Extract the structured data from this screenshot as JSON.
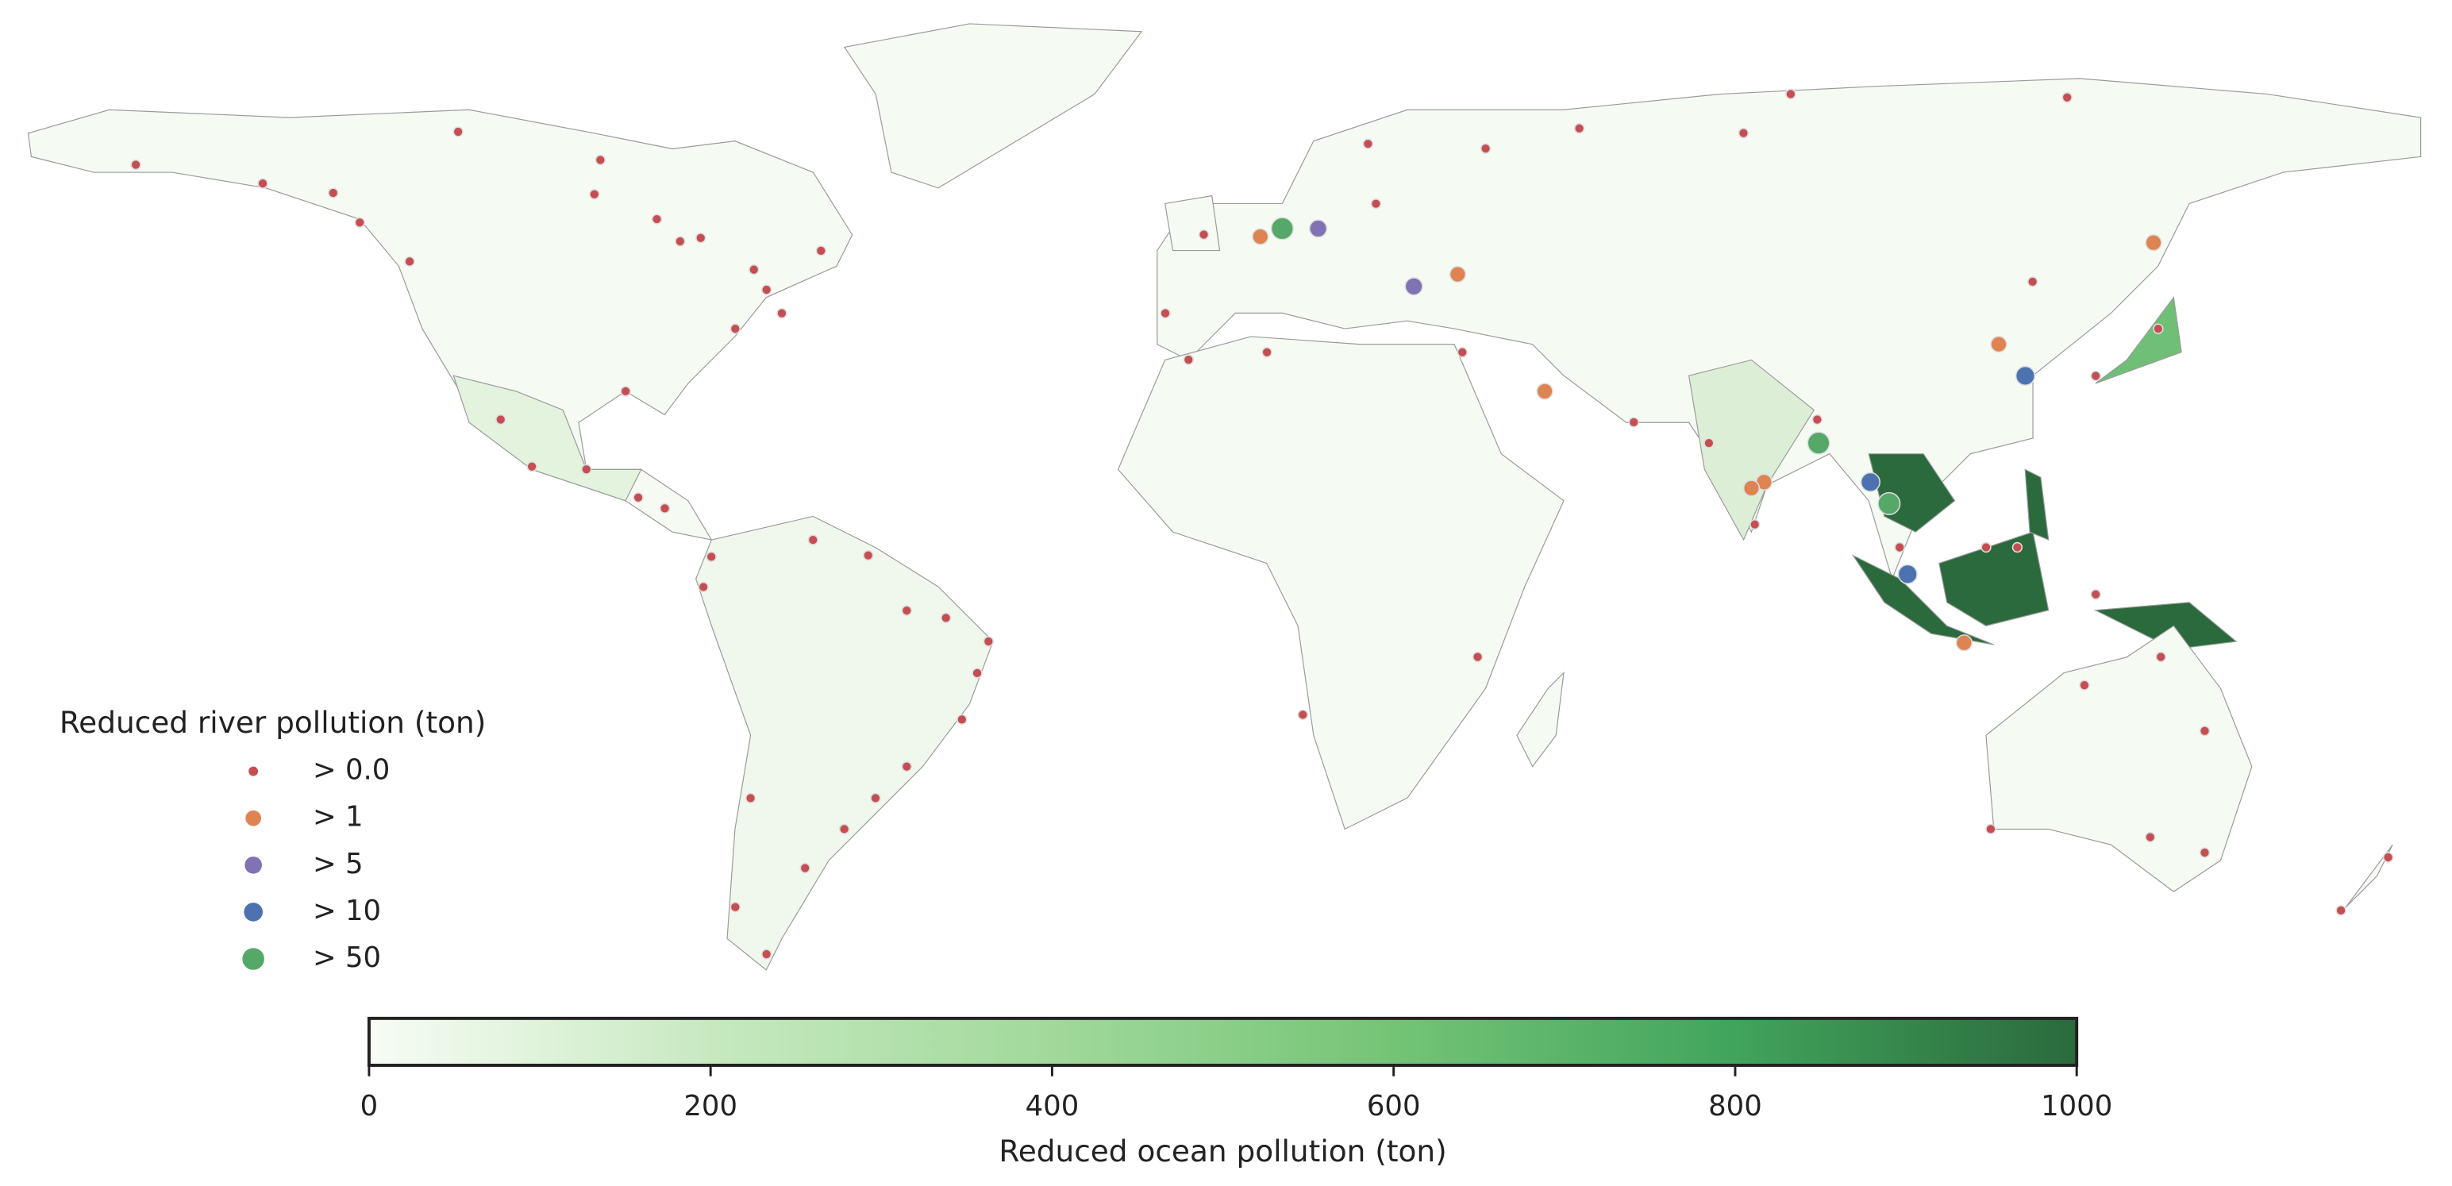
{
  "chart_data": {
    "type": "map",
    "legend": {
      "title": "Reduced river pollution (ton)",
      "items": [
        {
          "label": "> 0.0",
          "color": "#c44e52",
          "size": 3
        },
        {
          "label": "> 1",
          "color": "#dd8452",
          "size": 5
        },
        {
          "label": "> 5",
          "color": "#8172b3",
          "size": 5.5
        },
        {
          "label": "> 10",
          "color": "#4c72b0",
          "size": 6
        },
        {
          "label": "> 50",
          "color": "#55a868",
          "size": 7
        }
      ]
    },
    "colorbar": {
      "label": "Reduced ocean pollution (ton)",
      "lim": [
        0,
        1000
      ],
      "ticks": [
        0,
        200,
        400,
        600,
        800,
        1000
      ],
      "colors": [
        "#f7fcf5",
        "#c7e9c0",
        "#a1d99b",
        "#74c476",
        "#41a45c",
        "#2a6a3c"
      ]
    },
    "points": [
      {
        "lon": -163.8,
        "lat": 61.6,
        "level": 0
      },
      {
        "lon": -115.3,
        "lat": 66.5,
        "level": 0
      },
      {
        "lon": -144.7,
        "lat": 58.8,
        "level": 0
      },
      {
        "lon": -134.1,
        "lat": 57.4,
        "level": 0
      },
      {
        "lon": -130.1,
        "lat": 53.0,
        "level": 0
      },
      {
        "lon": -122.6,
        "lat": 47.2,
        "level": 0
      },
      {
        "lon": -93.9,
        "lat": 62.3,
        "level": 0
      },
      {
        "lon": -94.8,
        "lat": 57.2,
        "level": 0
      },
      {
        "lon": -85.4,
        "lat": 53.5,
        "level": 0
      },
      {
        "lon": -81.9,
        "lat": 50.2,
        "level": 0
      },
      {
        "lon": -78.8,
        "lat": 50.7,
        "level": 0
      },
      {
        "lon": -70.8,
        "lat": 46.0,
        "level": 0
      },
      {
        "lon": -68.9,
        "lat": 43.0,
        "level": 0
      },
      {
        "lon": -60.7,
        "lat": 48.8,
        "level": 0
      },
      {
        "lon": -66.6,
        "lat": 39.5,
        "level": 0
      },
      {
        "lon": -73.6,
        "lat": 37.2,
        "level": 0
      },
      {
        "lon": -90.1,
        "lat": 27.9,
        "level": 0
      },
      {
        "lon": -108.9,
        "lat": 23.7,
        "level": 0
      },
      {
        "lon": -104.2,
        "lat": 16.7,
        "level": 0
      },
      {
        "lon": -96.0,
        "lat": 16.3,
        "level": 0
      },
      {
        "lon": -88.2,
        "lat": 12.1,
        "level": 0
      },
      {
        "lon": -84.2,
        "lat": 10.5,
        "level": 0
      },
      {
        "lon": -77.2,
        "lat": 3.3,
        "level": 0
      },
      {
        "lon": -78.4,
        "lat": -1.2,
        "level": 0
      },
      {
        "lon": -61.9,
        "lat": 5.8,
        "level": 0
      },
      {
        "lon": -53.6,
        "lat": 3.5,
        "level": 0
      },
      {
        "lon": -47.8,
        "lat": -4.7,
        "level": 0
      },
      {
        "lon": -41.9,
        "lat": -5.8,
        "level": 0
      },
      {
        "lon": -35.5,
        "lat": -9.3,
        "level": 0
      },
      {
        "lon": -37.2,
        "lat": -14.0,
        "level": 0
      },
      {
        "lon": -39.5,
        "lat": -20.9,
        "level": 0
      },
      {
        "lon": -47.8,
        "lat": -27.9,
        "level": 0
      },
      {
        "lon": -52.5,
        "lat": -32.6,
        "level": 0
      },
      {
        "lon": -57.2,
        "lat": -37.2,
        "level": 0
      },
      {
        "lon": -63.1,
        "lat": -43.0,
        "level": 0
      },
      {
        "lon": -71.3,
        "lat": -32.6,
        "level": 0
      },
      {
        "lon": -73.6,
        "lat": -48.8,
        "level": 0
      },
      {
        "lon": -68.9,
        "lat": -55.8,
        "level": 0
      },
      {
        "lon": -8.9,
        "lat": 39.5,
        "level": 0
      },
      {
        "lon": -5.4,
        "lat": 32.6,
        "level": 0
      },
      {
        "lon": 6.4,
        "lat": 33.7,
        "level": 0
      },
      {
        "lon": -3.1,
        "lat": 51.2,
        "level": 0
      },
      {
        "lon": 22.8,
        "lat": 55.8,
        "level": 0
      },
      {
        "lon": 21.6,
        "lat": 64.7,
        "level": 0
      },
      {
        "lon": 39.3,
        "lat": 64.0,
        "level": 0
      },
      {
        "lon": 53.4,
        "lat": 67.0,
        "level": 0
      },
      {
        "lon": 78.1,
        "lat": 66.3,
        "level": 0
      },
      {
        "lon": 85.2,
        "lat": 72.1,
        "level": 0
      },
      {
        "lon": 126.8,
        "lat": 71.6,
        "level": 0
      },
      {
        "lon": 35.8,
        "lat": 33.7,
        "level": 0
      },
      {
        "lon": 61.6,
        "lat": 23.3,
        "level": 0
      },
      {
        "lon": 72.9,
        "lat": 20.2,
        "level": 0
      },
      {
        "lon": 79.8,
        "lat": 8.1,
        "level": 0
      },
      {
        "lon": 89.2,
        "lat": 23.7,
        "level": 0
      },
      {
        "lon": 121.6,
        "lat": 44.2,
        "level": 0
      },
      {
        "lon": 131.1,
        "lat": 30.2,
        "level": 0
      },
      {
        "lon": 140.5,
        "lat": 37.2,
        "level": 0
      },
      {
        "lon": 101.6,
        "lat": 4.7,
        "level": 0
      },
      {
        "lon": 114.6,
        "lat": 4.7,
        "level": 0
      },
      {
        "lon": 119.3,
        "lat": 4.7,
        "level": 0
      },
      {
        "lon": 129.4,
        "lat": -15.8,
        "level": 0
      },
      {
        "lon": 147.5,
        "lat": -22.6,
        "level": 0
      },
      {
        "lon": 140.9,
        "lat": -11.6,
        "level": 0
      },
      {
        "lon": 115.3,
        "lat": -37.2,
        "level": 0
      },
      {
        "lon": 139.3,
        "lat": -38.4,
        "level": 0
      },
      {
        "lon": 147.5,
        "lat": -40.7,
        "level": 0
      },
      {
        "lon": 168.0,
        "lat": -49.3,
        "level": 0
      },
      {
        "lon": 175.1,
        "lat": -41.4,
        "level": 0
      },
      {
        "lon": 11.8,
        "lat": -20.2,
        "level": 0
      },
      {
        "lon": 38.1,
        "lat": -11.6,
        "level": 0
      },
      {
        "lon": 131.1,
        "lat": -2.3,
        "level": 0
      },
      {
        "lon": 5.4,
        "lat": 50.9,
        "level": 1
      },
      {
        "lon": 35.1,
        "lat": 45.3,
        "level": 1
      },
      {
        "lon": 48.2,
        "lat": 27.9,
        "level": 1
      },
      {
        "lon": 139.8,
        "lat": 50.0,
        "level": 1
      },
      {
        "lon": 116.5,
        "lat": 34.9,
        "level": 1
      },
      {
        "lon": 81.2,
        "lat": 14.4,
        "level": 1
      },
      {
        "lon": 79.3,
        "lat": 13.5,
        "level": 1
      },
      {
        "lon": 111.3,
        "lat": -9.5,
        "level": 1
      },
      {
        "lon": 14.1,
        "lat": 52.1,
        "level": 2
      },
      {
        "lon": 28.5,
        "lat": 43.5,
        "level": 2
      },
      {
        "lon": 120.5,
        "lat": 30.2,
        "level": 3
      },
      {
        "lon": 97.2,
        "lat": 14.4,
        "level": 3
      },
      {
        "lon": 102.8,
        "lat": 0.7,
        "level": 3
      },
      {
        "lon": 8.7,
        "lat": 52.1,
        "level": 4
      },
      {
        "lon": 89.4,
        "lat": 20.2,
        "level": 4
      },
      {
        "lon": 100.0,
        "lat": 11.2,
        "level": 4
      }
    ]
  }
}
